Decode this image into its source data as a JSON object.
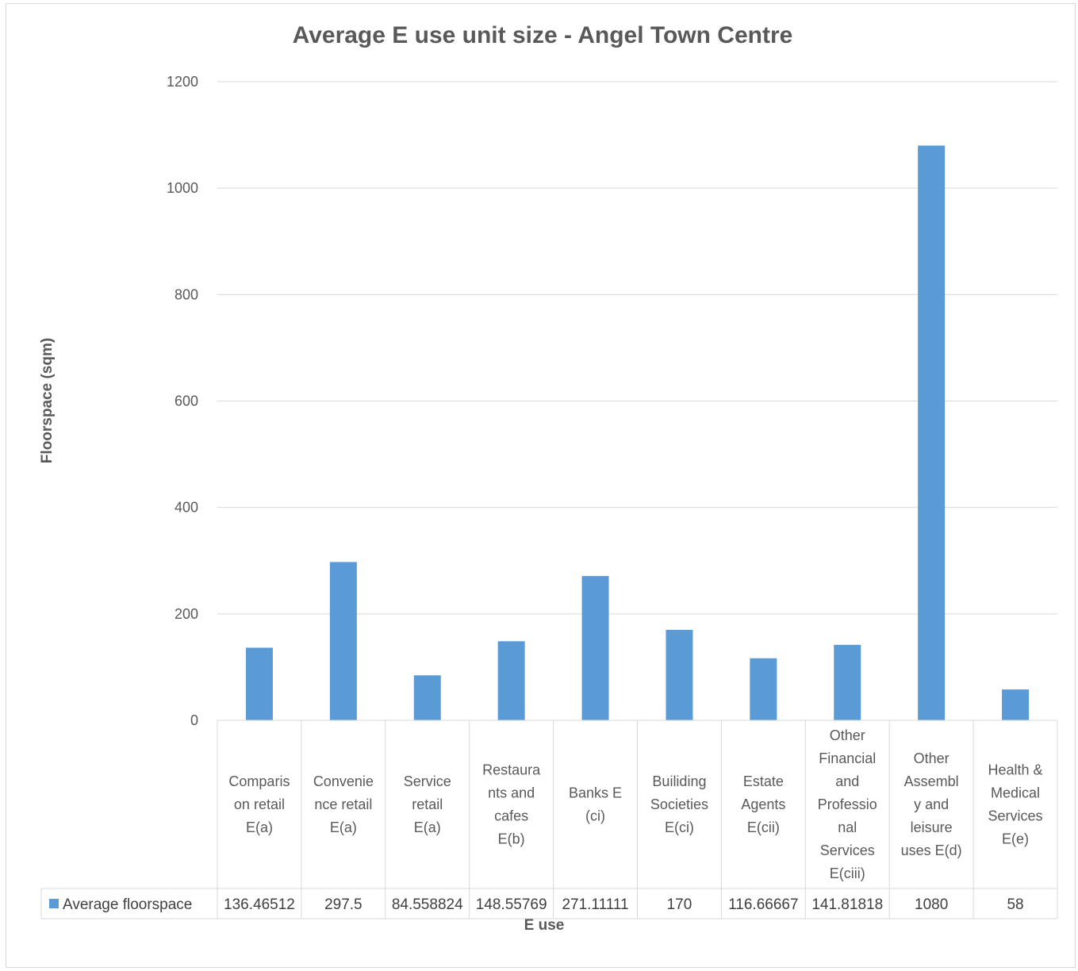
{
  "chart_data": {
    "type": "bar",
    "title": "Average E use unit size - Angel Town Centre",
    "xlabel": "E use",
    "ylabel": "Floorspace  (sqm)",
    "ylim": [
      0,
      1200
    ],
    "yticks": [
      "0",
      "200",
      "400",
      "600",
      "800",
      "1000",
      "1200"
    ],
    "grid": true,
    "legend_placement": "data-table",
    "categories": [
      [
        "Comparis",
        "on retail",
        "E(a)"
      ],
      [
        "Convenie",
        "nce retail",
        "E(a)"
      ],
      [
        "Service",
        "retail",
        "E(a)"
      ],
      [
        "Restaura",
        "nts and",
        "cafes",
        "E(b)"
      ],
      [
        "Banks E",
        "(ci)"
      ],
      [
        "Builiding",
        "Societies",
        "E(ci)"
      ],
      [
        "Estate",
        "Agents",
        "E(cii)"
      ],
      [
        "Other",
        "Financial",
        "and",
        "Professio",
        "nal",
        "Services",
        "E(ciii)"
      ],
      [
        "Other",
        "Assembl",
        "y and",
        "leisure",
        "uses E(d)"
      ],
      [
        "Health &",
        "Medical",
        "Services",
        "E(e)"
      ]
    ],
    "series": [
      {
        "name": "Average floorspace",
        "color": "#5b9bd5",
        "values": [
          136.46512,
          297.5,
          84.55882,
          148.55769,
          271.11111,
          170,
          116.66667,
          141.81818,
          1080,
          58
        ],
        "labels": [
          "136.46512",
          "297.5",
          "84.558824",
          "148.55769",
          "271.11111",
          "170",
          "116.66667",
          "141.81818",
          "1080",
          "58"
        ]
      }
    ]
  }
}
